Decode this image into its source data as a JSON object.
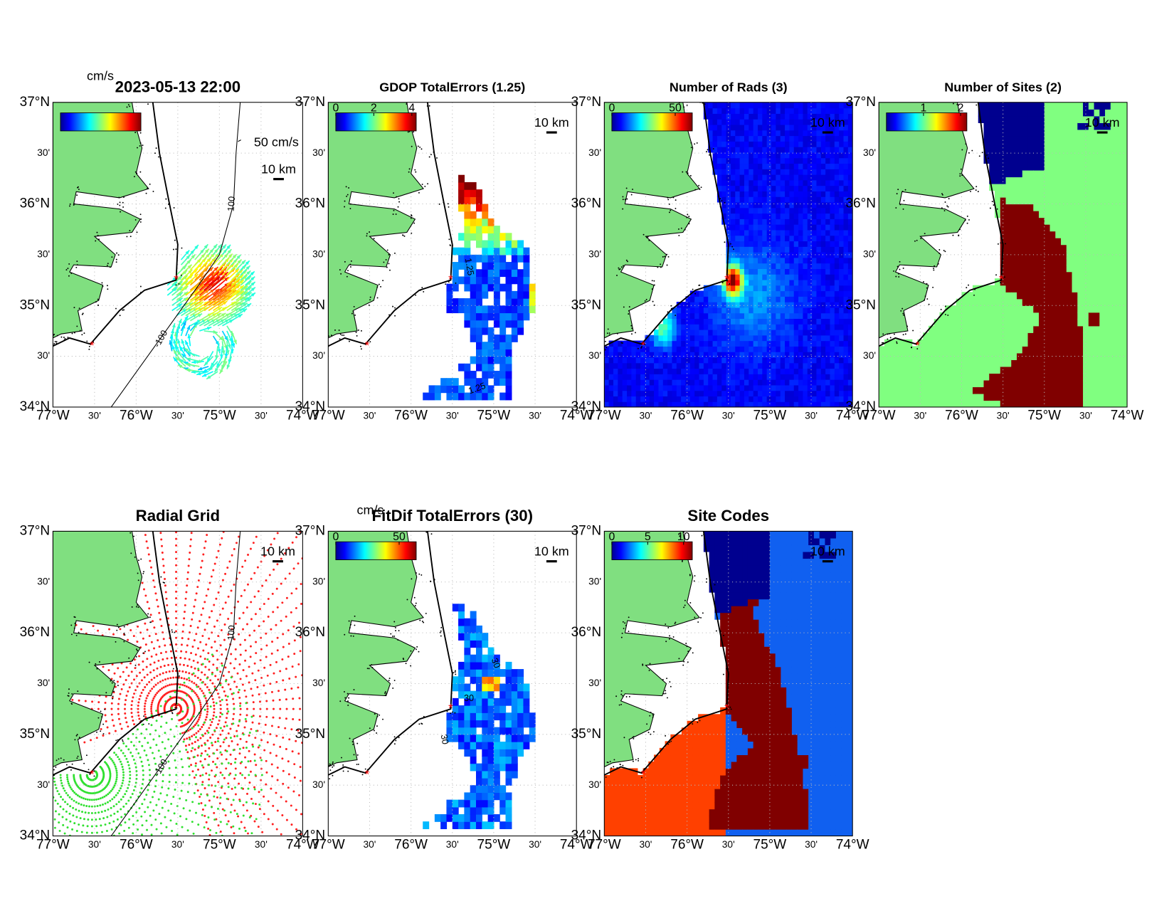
{
  "axes": {
    "lat_ticks": [
      "37°N",
      "30'",
      "36°N",
      "30'",
      "35°N",
      "30'",
      "34°N"
    ],
    "lon_ticks": [
      "77°W",
      "30'",
      "76°W",
      "30'",
      "75°W",
      "30'",
      "74°W"
    ]
  },
  "panels": [
    {
      "title": "2023-05-13 22:00",
      "units": "cm/s",
      "speed_scale": "50 cm/s",
      "scale_bar": "10 km",
      "contour_labels": [
        "100",
        "-100"
      ]
    },
    {
      "title": "GDOP TotalErrors (1.25)",
      "colorbar": {
        "clim": [
          0,
          4
        ],
        "ticks": [
          0,
          2,
          4
        ]
      },
      "scale_bar": "10 km",
      "contour_labels": [
        "1.25",
        "1.25"
      ]
    },
    {
      "title": "Number of Rads (3)",
      "colorbar": {
        "clim": [
          0,
          60
        ],
        "ticks": [
          0,
          50
        ]
      },
      "scale_bar": "10 km"
    },
    {
      "title": "Number of Sites (2)",
      "colorbar": {
        "clim": [
          0,
          2.05
        ],
        "ticks": [
          1,
          2
        ]
      },
      "scale_bar": "10 km"
    },
    {
      "title": "Radial Grid",
      "scale_bar": "10 km",
      "contour_labels": [
        "100",
        "-100"
      ]
    },
    {
      "title": "FitDif TotalErrors (30)",
      "units": "cm/s",
      "colorbar": {
        "clim": [
          0,
          60
        ],
        "ticks": [
          0,
          50
        ]
      },
      "scale_bar": "10 km",
      "contour_labels": [
        "30",
        "30",
        "30"
      ]
    },
    {
      "title": "Site Codes",
      "colorbar": {
        "clim": [
          0,
          10.6
        ],
        "ticks": [
          0,
          5,
          10
        ]
      },
      "scale_bar": "10 km"
    }
  ]
}
